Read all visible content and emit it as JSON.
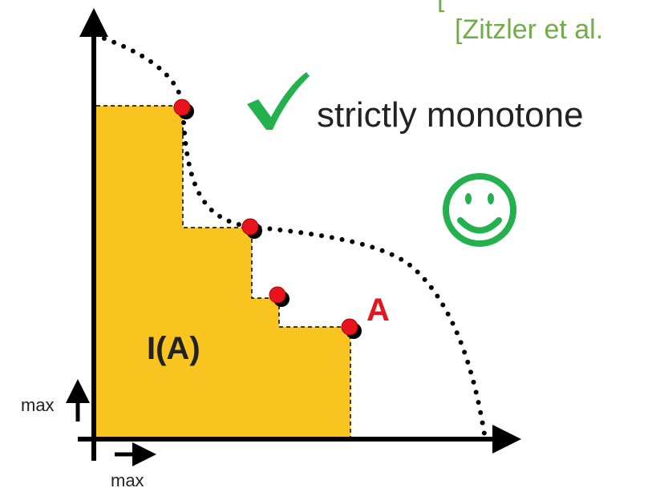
{
  "header": {
    "bracket": "[",
    "citation": "[Zitzler et al."
  },
  "property": "strictly monotone",
  "labels": {
    "indicator": "I(A)",
    "set": "A",
    "y_axis": "max",
    "x_axis": "max"
  }
}
